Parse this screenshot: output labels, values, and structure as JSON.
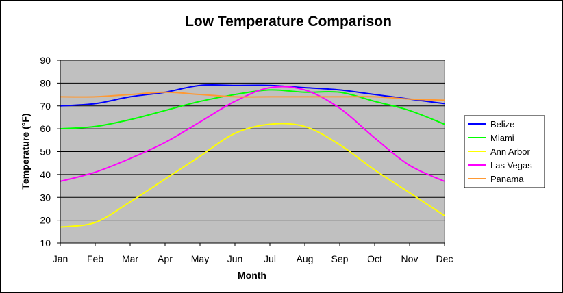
{
  "chart_data": {
    "type": "line",
    "title": "Low Temperature Comparison",
    "xlabel": "Month",
    "ylabel": "Temperature (°F)",
    "categories": [
      "Jan",
      "Feb",
      "Mar",
      "Apr",
      "May",
      "Jun",
      "Jul",
      "Aug",
      "Sep",
      "Oct",
      "Nov",
      "Dec"
    ],
    "ylim": [
      10,
      90
    ],
    "yticks": [
      10,
      20,
      30,
      40,
      50,
      60,
      70,
      80,
      90
    ],
    "grid": true,
    "legend_position": "right",
    "plot_background": "#c0c0c0",
    "series": [
      {
        "name": "Belize",
        "color": "#0000ff",
        "values": [
          70,
          71,
          74,
          76,
          79,
          79,
          79,
          78,
          77,
          75,
          73,
          71
        ]
      },
      {
        "name": "Miami",
        "color": "#00ff00",
        "values": [
          60,
          61,
          64,
          68,
          72,
          75,
          77,
          76,
          76,
          72,
          68,
          62
        ]
      },
      {
        "name": "Ann Arbor",
        "color": "#ffff00",
        "values": [
          17,
          19,
          28,
          38,
          48,
          58,
          62,
          61,
          53,
          42,
          32,
          22
        ]
      },
      {
        "name": "Las Vegas",
        "color": "#ff00ff",
        "values": [
          37,
          41,
          47,
          54,
          63,
          72,
          78,
          77,
          69,
          56,
          44,
          37
        ]
      },
      {
        "name": "Panama",
        "color": "#ff9933",
        "values": [
          74,
          74,
          75,
          76,
          75,
          74,
          74,
          74,
          74,
          74,
          73,
          72.5
        ]
      }
    ]
  }
}
